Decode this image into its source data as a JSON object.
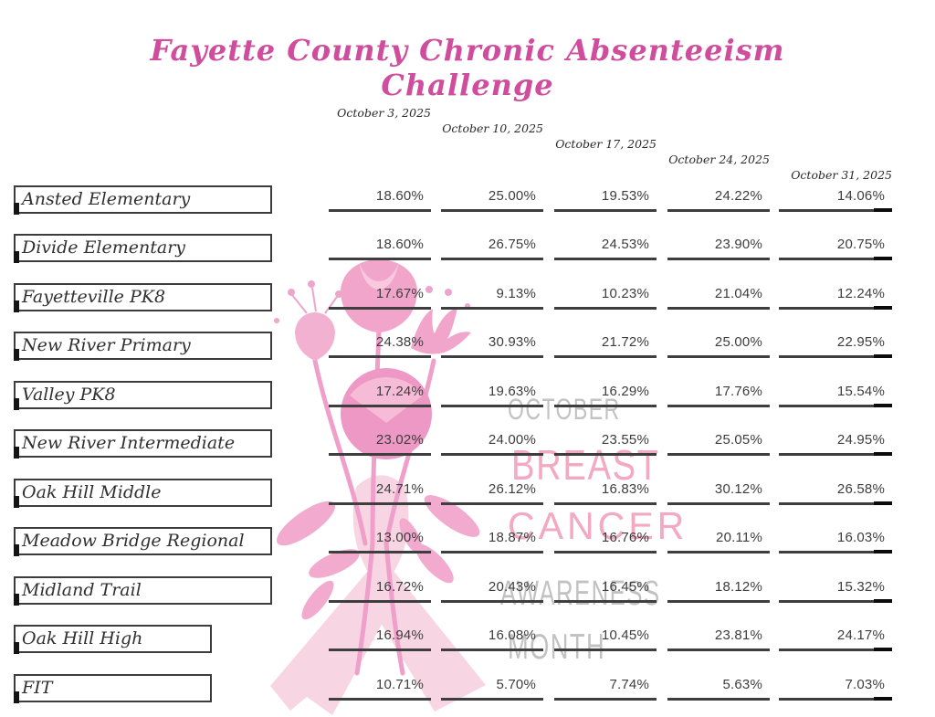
{
  "title": "Fayette County Chronic Absenteeism Challenge",
  "columns": [
    "October 3, 2025",
    "October 10, 2025",
    "October 17, 2025",
    "October 24, 2025",
    "October 31, 2025"
  ],
  "rows": [
    {
      "school": "Ansted Elementary",
      "values": [
        "18.60%",
        "25.00%",
        "19.53%",
        "24.22%",
        "14.06%"
      ]
    },
    {
      "school": "Divide Elementary",
      "values": [
        "18.60%",
        "26.75%",
        "24.53%",
        "23.90%",
        "20.75%"
      ]
    },
    {
      "school": "Fayetteville PK8",
      "values": [
        "17.67%",
        "9.13%",
        "10.23%",
        "21.04%",
        "12.24%"
      ]
    },
    {
      "school": "New River Primary",
      "values": [
        "24.38%",
        "30.93%",
        "21.72%",
        "25.00%",
        "22.95%"
      ]
    },
    {
      "school": "Valley PK8",
      "values": [
        "17.24%",
        "19.63%",
        "16.29%",
        "17.76%",
        "15.54%"
      ]
    },
    {
      "school": "New River Intermediate",
      "values": [
        "23.02%",
        "24.00%",
        "23.55%",
        "25.05%",
        "24.95%"
      ]
    },
    {
      "school": "Oak Hill Middle",
      "values": [
        "24.71%",
        "26.12%",
        "16.83%",
        "30.12%",
        "26.58%"
      ]
    },
    {
      "school": "Meadow Bridge Regional",
      "values": [
        "13.00%",
        "18.87%",
        "16.76%",
        "20.11%",
        "16.03%"
      ]
    },
    {
      "school": "Midland Trail",
      "values": [
        "16.72%",
        "20.43%",
        "16.45%",
        "18.12%",
        "15.32%"
      ]
    },
    {
      "school": "Oak Hill High",
      "values": [
        "16.94%",
        "16.08%",
        "10.45%",
        "23.81%",
        "24.17%"
      ],
      "narrow": true
    },
    {
      "school": "FIT",
      "values": [
        "10.71%",
        "5.70%",
        "7.74%",
        "5.63%",
        "7.03%"
      ],
      "narrow": true
    }
  ],
  "watermark": {
    "lines": [
      "OCTOBER",
      "BREAST",
      "CANCER",
      "AWARENESS",
      "MONTH"
    ]
  },
  "colors": {
    "title_pink": "#cf4d9c",
    "ink": "#3d3d3d",
    "underline": "#3e3e3e",
    "underline_cap": "#0b0b0b",
    "watermark_gray": "#b4b4b4",
    "watermark_pink": "#f1a0bb",
    "ribbon_pink": "#f8d5e3",
    "flower_pink": "#f0a2ca",
    "flower_light_pink": "#f6c4db"
  }
}
